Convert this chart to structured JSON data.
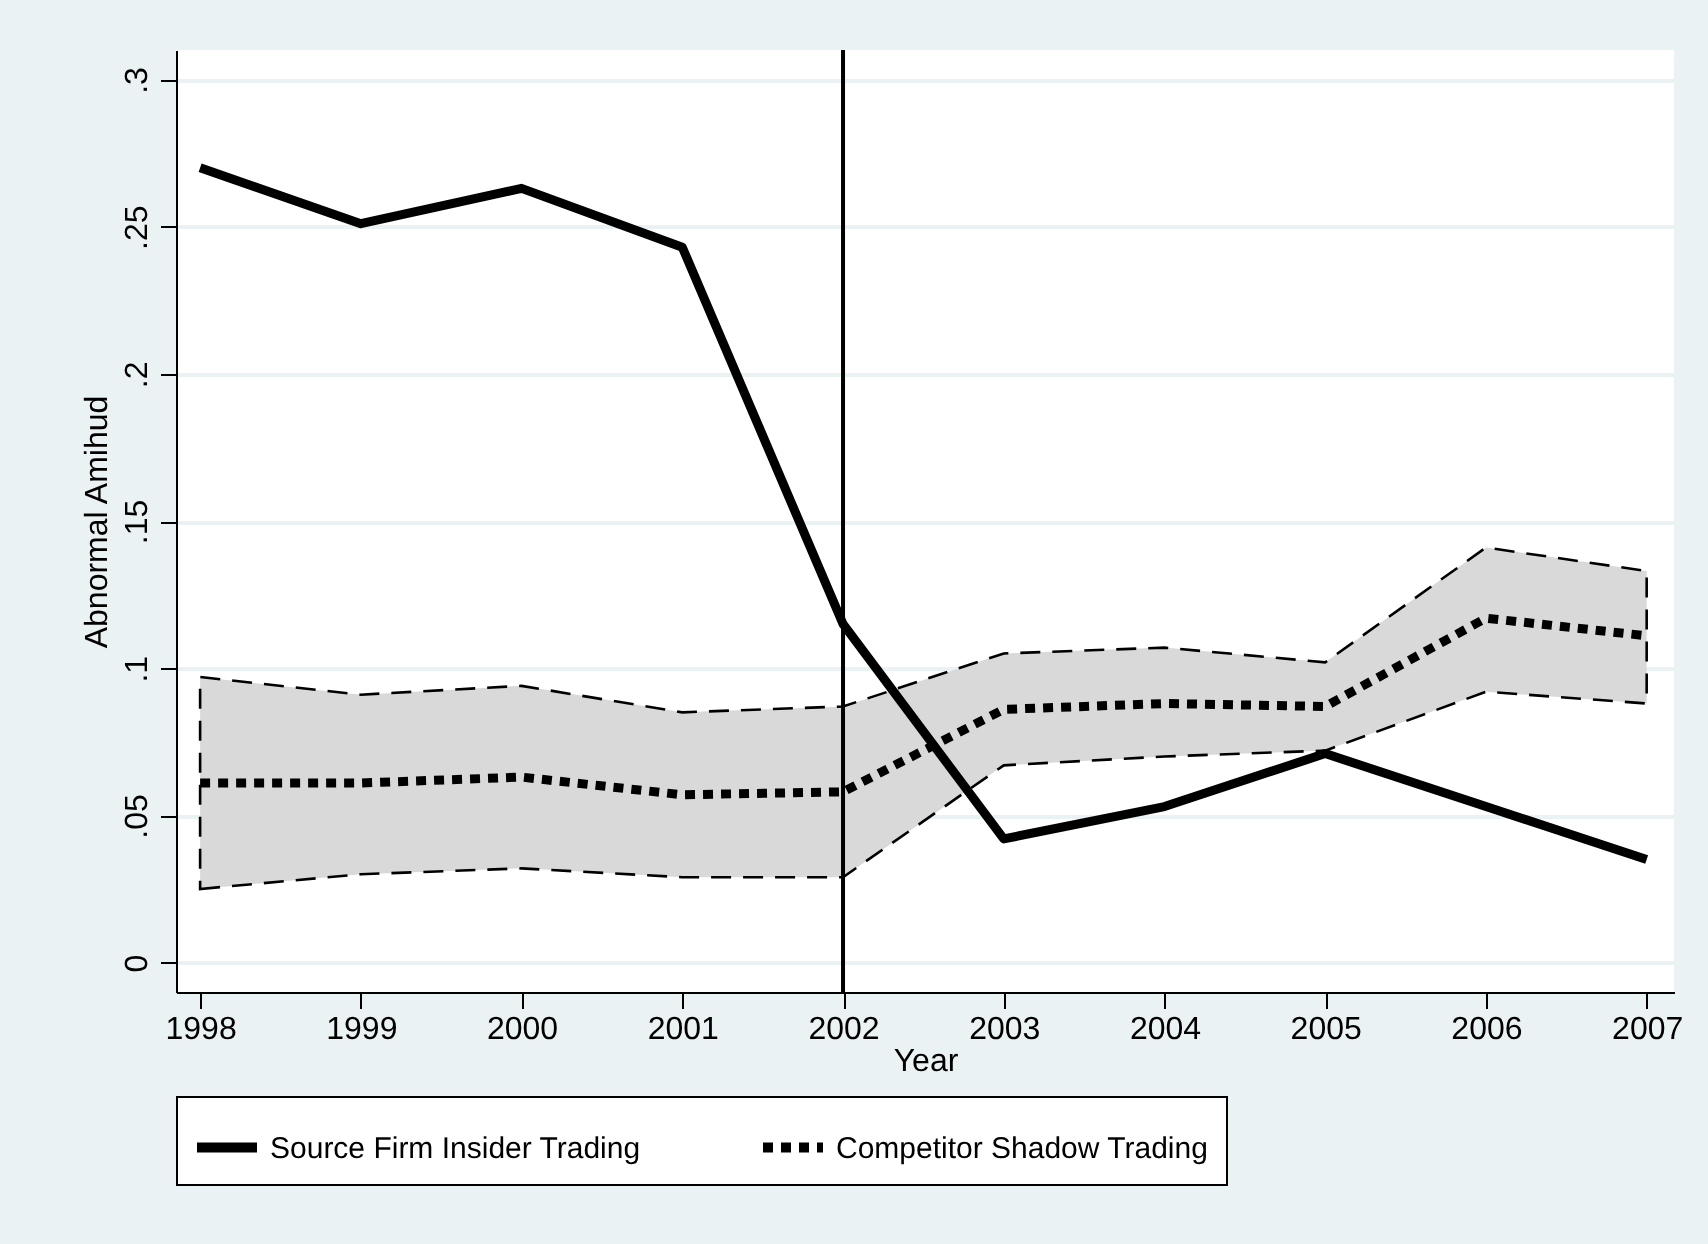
{
  "chart_data": {
    "type": "line",
    "xlabel": "Year",
    "ylabel": "Abnormal Amihud",
    "x": [
      1998,
      1999,
      2000,
      2001,
      2002,
      2003,
      2004,
      2005,
      2006,
      2007
    ],
    "series": [
      {
        "name": "Source Firm Insider Trading",
        "color": "#000000",
        "line_style": "solid",
        "values": [
          0.27,
          0.251,
          0.263,
          0.243,
          0.115,
          0.042,
          0.053,
          0.071,
          0.053,
          0.035
        ]
      },
      {
        "name": "Competitor Shadow Trading",
        "color": "#000000",
        "line_style": "dotted",
        "values": [
          0.061,
          0.061,
          0.063,
          0.057,
          0.058,
          0.086,
          0.088,
          0.087,
          0.117,
          0.111
        ],
        "lower": [
          0.025,
          0.03,
          0.032,
          0.029,
          0.029,
          0.067,
          0.07,
          0.072,
          0.092,
          0.088
        ],
        "upper": [
          0.097,
          0.091,
          0.094,
          0.085,
          0.087,
          0.105,
          0.107,
          0.102,
          0.141,
          0.133
        ]
      }
    ],
    "xlim": [
      1997.85,
      2007.17
    ],
    "xticks": [
      1998,
      1999,
      2000,
      2001,
      2002,
      2003,
      2004,
      2005,
      2006,
      2007
    ],
    "ylim": [
      -0.01,
      0.31
    ],
    "yticks": [
      0,
      {
        "value": 0.05,
        "label": ".05"
      },
      {
        "value": 0.1,
        "label": ".1"
      },
      {
        "value": 0.15,
        "label": ".15"
      },
      {
        "value": 0.2,
        "label": ".2"
      },
      {
        "value": 0.25,
        "label": ".25"
      },
      {
        "value": 0.3,
        "label": ".3"
      }
    ],
    "ref_lines": [
      {
        "axis": "x",
        "value": 2002,
        "label": null,
        "color": "#000000"
      }
    ],
    "grid": "y",
    "legend": "bottom"
  }
}
